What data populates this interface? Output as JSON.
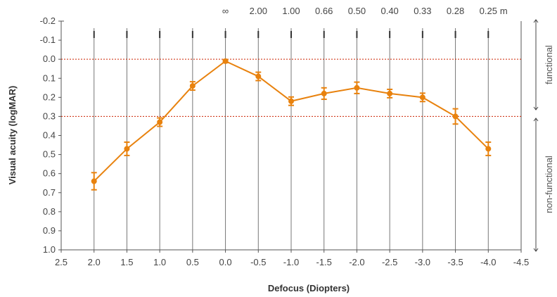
{
  "chart_data": {
    "type": "line",
    "xlabel": "Defocus (Diopters)",
    "ylabel": "Visual acuity (logMAR)",
    "x": [
      2.0,
      1.5,
      1.0,
      0.5,
      0.0,
      -0.5,
      -1.0,
      -1.5,
      -2.0,
      -2.5,
      -3.0,
      -3.5,
      -4.0
    ],
    "x_tick_labels": [
      "2.5",
      "2.0",
      "1.5",
      "1.0",
      "0.5",
      "0.0",
      "-0.5",
      "-1.0",
      "-1.5",
      "-2.0",
      "-2.5",
      "-3.0",
      "-3.5",
      "-4.0",
      "-4.5"
    ],
    "x_ticks": [
      2.5,
      2.0,
      1.5,
      1.0,
      0.5,
      0.0,
      -0.5,
      -1.0,
      -1.5,
      -2.0,
      -2.5,
      -3.0,
      -3.5,
      -4.0,
      -4.5
    ],
    "xlim": [
      2.5,
      -4.5
    ],
    "y_tick_labels": [
      "-0.2",
      "-0.1",
      "0.0",
      "0.1",
      "0.2",
      "0.3",
      "0.4",
      "0.5",
      "0.6",
      "0.7",
      "0.8",
      "0.9",
      "1.0"
    ],
    "y_ticks": [
      -0.2,
      -0.1,
      0.0,
      0.1,
      0.2,
      0.3,
      0.4,
      0.5,
      0.6,
      0.7,
      0.8,
      0.9,
      1.0
    ],
    "ylim": [
      -0.2,
      1.0
    ],
    "y_inverted": true,
    "series": [
      {
        "values": [
          0.64,
          0.47,
          0.33,
          0.14,
          0.01,
          0.09,
          0.22,
          0.18,
          0.15,
          0.18,
          0.2,
          0.3,
          0.47
        ],
        "errors": [
          0.045,
          0.035,
          0.022,
          0.022,
          0.008,
          0.022,
          0.022,
          0.03,
          0.03,
          0.022,
          0.022,
          0.04,
          0.035
        ],
        "color": "#E8820E"
      }
    ],
    "reference_lines": [
      {
        "y": 0.0,
        "color": "#CC2200",
        "style": "dotted"
      },
      {
        "y": 0.3,
        "color": "#CC2200",
        "style": "dotted"
      }
    ],
    "top_axis_labels": [
      "∞",
      "2.00",
      "1.00",
      "0.66",
      "0.50",
      "0.40",
      "0.33",
      "0.28",
      "0.25"
    ],
    "top_axis_positions": [
      0.0,
      -0.5,
      -1.0,
      -1.5,
      -2.0,
      -2.5,
      -3.0,
      -3.5,
      -4.0
    ],
    "top_axis_unit": "m",
    "side_annotations": [
      {
        "label": "functional",
        "range": [
          -0.2,
          0.3
        ]
      },
      {
        "label": "non-functional",
        "range": [
          0.3,
          1.0
        ]
      }
    ],
    "grid": "vertical",
    "colors": {
      "line": "#E8820E",
      "reference": "#CC2200",
      "grid": "#777777",
      "axis": "#555555"
    }
  }
}
